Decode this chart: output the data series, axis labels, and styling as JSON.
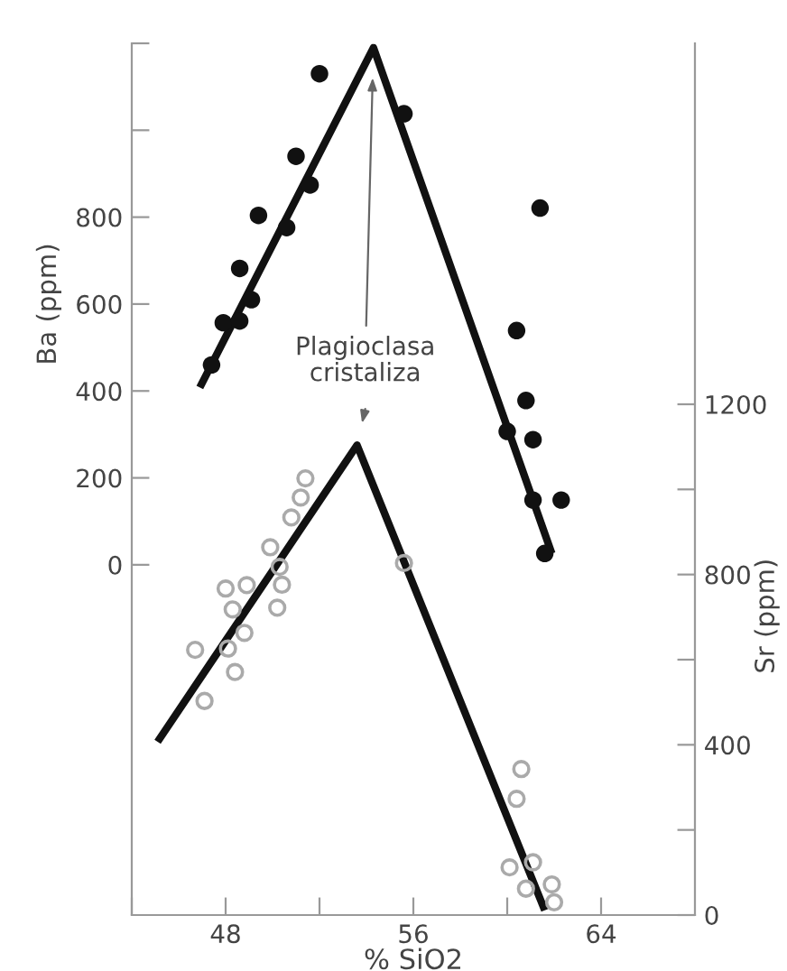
{
  "chart_data": {
    "type": "scatter",
    "xlabel": "% SiO2",
    "ylabel": "Sr (ppm)",
    "y2label": "Ba (ppm)",
    "xlim": [
      44,
      68
    ],
    "xticks": [
      {
        "value": 44,
        "label": null
      },
      48,
      {
        "value": 52,
        "label": null
      },
      56,
      {
        "value": 60,
        "label": null
      },
      64
    ],
    "ylim": [
      0,
      2048
    ],
    "yticks": [
      0,
      {
        "value": 200,
        "label": null
      },
      400,
      {
        "value": 600,
        "label": null
      },
      800,
      {
        "value": 1000,
        "label": null
      },
      1200
    ],
    "y2lim": [
      -806,
      1200
    ],
    "y2ticks": [
      0,
      200,
      400,
      600,
      800,
      {
        "value": 1000,
        "label": null
      },
      {
        "value": 1200,
        "label": null
      }
    ],
    "grid": false,
    "legend": false,
    "annotations": [
      "Plagioclasa\ncristaliza"
    ],
    "series": [
      {
        "axis": "y2",
        "marker": "circle",
        "color": "#111111",
        "x": [
          47.4,
          47.9,
          48.6,
          48.6,
          49.1,
          49.4,
          50.6,
          51.0,
          51.6,
          52.0,
          55.6,
          61.4,
          60.4,
          60.8,
          60.0,
          61.1,
          61.1,
          62.3,
          61.6
        ],
        "values": [
          460,
          557,
          561,
          682,
          610,
          804,
          776,
          940,
          874,
          1130,
          1038,
          821,
          539,
          378,
          307,
          288,
          149,
          149,
          26
        ]
      },
      {
        "type": "line",
        "axis": "y2",
        "color": "#111111",
        "line_style": "solid",
        "x": [
          46.9,
          54.3,
          61.9
        ],
        "values": [
          408,
          1190,
          26
        ]
      },
      {
        "marker": "circle",
        "color": "#aaaaaa",
        "x": [
          51.4,
          51.2,
          50.8,
          49.9,
          50.3,
          50.4,
          50.2,
          48.9,
          48.0,
          48.3,
          48.8,
          46.7,
          48.1,
          48.4,
          47.1,
          55.6,
          60.6,
          60.4,
          60.1,
          61.1,
          61.9,
          60.8,
          62.0
        ],
        "values": [
          1026,
          981,
          934,
          864,
          818,
          776,
          722,
          775,
          767,
          718,
          663,
          623,
          626,
          571,
          503,
          827,
          343,
          273,
          112,
          124,
          72,
          62,
          30
        ]
      },
      {
        "type": "line",
        "color": "#111111",
        "line_style": "solid",
        "x": [
          45.1,
          53.6,
          61.6
        ],
        "values": [
          407,
          1104,
          11
        ]
      }
    ]
  }
}
